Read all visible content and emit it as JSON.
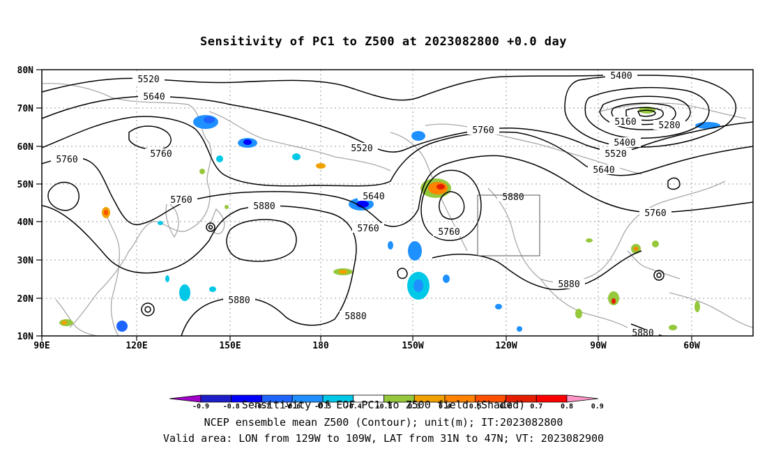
{
  "title": "Sensitivity of PC1 to Z500 at 2023082800 +0.0 day",
  "axes": {
    "y_ticks": [
      "80N",
      "70N",
      "60N",
      "50N",
      "40N",
      "30N",
      "20N",
      "10N"
    ],
    "x_ticks": [
      "90E",
      "120E",
      "150E",
      "180",
      "150W",
      "120W",
      "90W",
      "60W"
    ]
  },
  "contour_labels": [
    "5520",
    "5640",
    "5760",
    "5760",
    "5760",
    "5760",
    "5880",
    "5640",
    "5520",
    "5760",
    "5760",
    "5880",
    "5880",
    "5880",
    "5880",
    "5400",
    "5160",
    "5280",
    "5400",
    "5520",
    "5640",
    "5760",
    "5880"
  ],
  "colorbar": {
    "tick_labels": [
      "-0.9",
      "-0.8",
      "-0.7",
      "-0.6",
      "-0.5",
      "-0.4",
      "-0.3",
      "0.3",
      "0.4",
      "0.5",
      "0.6",
      "0.7",
      "0.8",
      "0.9"
    ],
    "colors": [
      "#a000c8",
      "#1e1ec8",
      "#0000ff",
      "#1e64ff",
      "#1e90ff",
      "#00c8e6",
      "#ffffff",
      "#96c83c",
      "#f0a000",
      "#ff8200",
      "#ff5000",
      "#e61e00",
      "#ff0000",
      "#ff96c8"
    ]
  },
  "footer": {
    "line1": "Sensitivity of EOF PC1 to Z500 field (Shaded)",
    "line2": "NCEP ensemble mean Z500 (Contour); unit(m); IT:2023082800",
    "line3": "Valid area: LON from 129W to 109W, LAT from 31N to 47N; VT: 2023082900"
  }
}
